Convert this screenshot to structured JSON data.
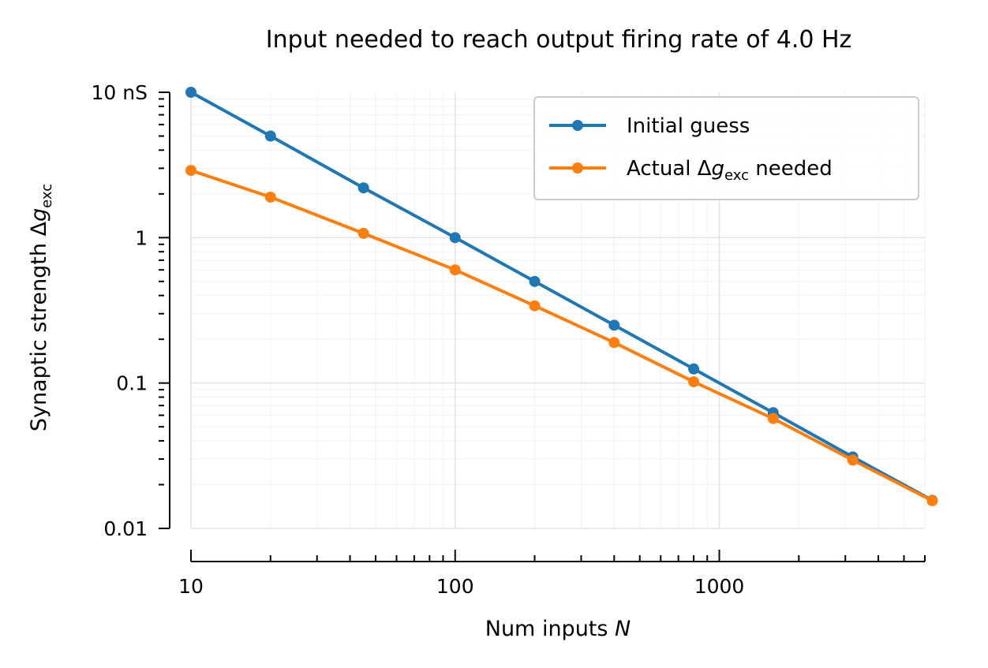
{
  "chart_data": {
    "type": "line",
    "title": "Input needed to reach output firing rate of 4.0 Hz",
    "xlabel": {
      "text": "Num inputs ",
      "var": "N"
    },
    "ylabel": {
      "text": "Synaptic strength Δ",
      "var": "g",
      "sub": "exc"
    },
    "xscale": "log",
    "yscale": "log",
    "xlim": [
      10,
      6000
    ],
    "ylim": [
      0.01,
      10
    ],
    "xticks": [
      {
        "value": 10,
        "label": "10"
      },
      {
        "value": 100,
        "label": "100"
      },
      {
        "value": 1000,
        "label": "1000"
      }
    ],
    "yticks": [
      {
        "value": 10,
        "label": "10 nS"
      },
      {
        "value": 1,
        "label": "1"
      },
      {
        "value": 0.1,
        "label": "0.1"
      },
      {
        "value": 0.01,
        "label": "0.01"
      }
    ],
    "grid": true,
    "legend_position": "top-right",
    "series": [
      {
        "name": "Initial guess",
        "color": "#1f77b4",
        "x": [
          10,
          20,
          45,
          100,
          200,
          400,
          800,
          1600,
          3200,
          6400
        ],
        "y": [
          10,
          5,
          2.2,
          1.0,
          0.5,
          0.25,
          0.125,
          0.0625,
          0.031,
          0.0156
        ]
      },
      {
        "name": "Actual Δgexc needed",
        "name_parts": {
          "before": "Actual Δ",
          "var": "g",
          "sub": "exc",
          "after": " needed"
        },
        "color": "#ff7f0e",
        "x": [
          10,
          20,
          45,
          100,
          200,
          400,
          800,
          1600,
          3200,
          6400
        ],
        "y": [
          2.9,
          1.9,
          1.07,
          0.6,
          0.34,
          0.19,
          0.102,
          0.057,
          0.0295,
          0.0155
        ]
      }
    ]
  }
}
